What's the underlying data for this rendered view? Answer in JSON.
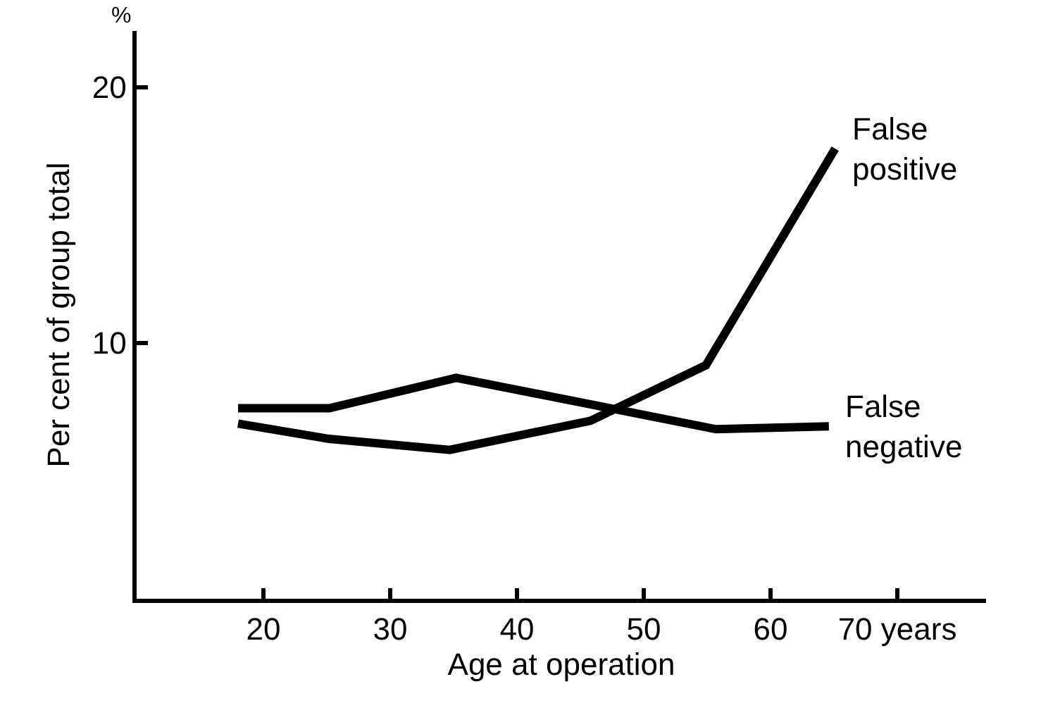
{
  "chart_data": {
    "type": "line",
    "xlabel": "Age at operation",
    "ylabel": "Per cent of group total",
    "annotations": [
      "%"
    ],
    "xlim": [
      10,
      77
    ],
    "xticks": [
      20,
      30,
      40,
      50,
      60,
      {
        "value": 70,
        "label": "70 years"
      }
    ],
    "ylim": [
      0,
      22.2
    ],
    "yticks": [
      10,
      20
    ],
    "grid": false,
    "legend": false,
    "marker": "none",
    "line_style": "solid",
    "series": [
      {
        "name": "False\npositive",
        "color": "#000000",
        "x": [
          18,
          25.2,
          34.7,
          45.8,
          54.9,
          65.1
        ],
        "values": [
          6.85,
          6.25,
          5.82,
          6.96,
          9.13,
          17.6
        ]
      },
      {
        "name": "False\nnegative",
        "color": "#000000",
        "x": [
          18,
          25.2,
          35.2,
          55.7,
          64.6
        ],
        "values": [
          7.45,
          7.45,
          8.64,
          6.63,
          6.74
        ]
      }
    ]
  }
}
